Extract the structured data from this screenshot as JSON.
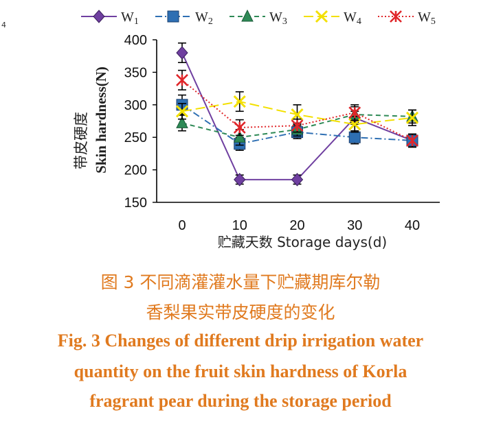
{
  "corner_mark": "4",
  "chart_data": {
    "type": "line",
    "x": [
      0,
      10,
      20,
      30,
      40
    ],
    "xlabel": "贮藏天数 Storage days(d)",
    "ylabel_cn": "带皮硬度",
    "ylabel_en": "Skin hardness(N)",
    "ylim": [
      150,
      400
    ],
    "yticks": [
      150,
      200,
      250,
      300,
      350,
      400
    ],
    "xticks": [
      0,
      10,
      20,
      30,
      40
    ],
    "legend_position": "top",
    "series": [
      {
        "name": "W",
        "sub": "1",
        "values": [
          380,
          185,
          185,
          280,
          245
        ],
        "errors": [
          15,
          7,
          7,
          10,
          10
        ],
        "color": "#6f3fa0",
        "marker": "diamond",
        "dash": "solid"
      },
      {
        "name": "W",
        "sub": "2",
        "values": [
          300,
          240,
          258,
          250,
          245
        ],
        "errors": [
          15,
          10,
          10,
          10,
          10
        ],
        "color": "#2e6fb3",
        "marker": "square",
        "dash": "dashdot"
      },
      {
        "name": "W",
        "sub": "3",
        "values": [
          272,
          250,
          262,
          285,
          282
        ],
        "errors": [
          12,
          12,
          10,
          12,
          10
        ],
        "color": "#2e8a56",
        "marker": "triangle",
        "dash": "dashed"
      },
      {
        "name": "W",
        "sub": "4",
        "values": [
          290,
          305,
          285,
          270,
          280
        ],
        "errors": [
          12,
          15,
          15,
          12,
          12
        ],
        "color": "#f3e000",
        "marker": "x",
        "dash": "longdash"
      },
      {
        "name": "W",
        "sub": "5",
        "values": [
          338,
          265,
          268,
          288,
          245
        ],
        "errors": [
          15,
          12,
          10,
          12,
          10
        ],
        "color": "#e0262a",
        "marker": "star",
        "dash": "dotted"
      }
    ]
  },
  "caption": {
    "cn_line1": "图 3 不同滴灌灌水量下贮藏期库尔勒",
    "cn_line2": "香梨果实带皮硬度的变化",
    "en_line1": "Fig. 3 Changes of different drip irrigation water",
    "en_line2": "quantity on the fruit skin hardness of Korla",
    "en_line3": "fragrant pear during the storage period"
  }
}
